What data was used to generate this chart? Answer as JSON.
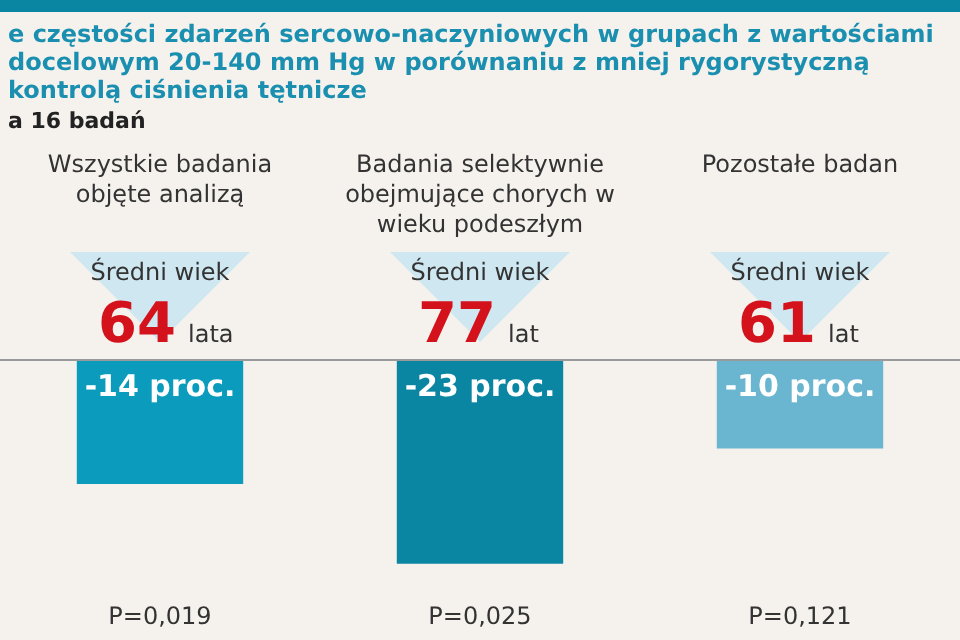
{
  "chart_data": {
    "type": "bar",
    "title": "e częstości zdarzeń sercowo-naczyniowych w grupach z wartościami docelowym 20-140 mm Hg w porównaniu z mniej rygorystyczną kontrolą ciśnienia tętnicze",
    "subtitle": "a 16 badań",
    "categories": [
      "Wszystkie badania objęte analizą",
      "Badania selektywnie obejmujące chorych w wieku podeszłym",
      "Pozostałe badan"
    ],
    "values": [
      -14,
      -23,
      -10
    ],
    "colors": [
      "#0a9bbd",
      "#0a86a3",
      "#6ab5cf"
    ],
    "value_labels": [
      "-14 proc.",
      "-23 proc.",
      "-10 proc."
    ],
    "tick_labels": false,
    "annotations": [
      "Średni wiek",
      "64",
      "lata",
      "Średni wiek",
      "77",
      "lat",
      "Średni wiek",
      "61",
      "lat",
      "P=0,019",
      "P=0,025",
      "P=0,121"
    ]
  }
}
